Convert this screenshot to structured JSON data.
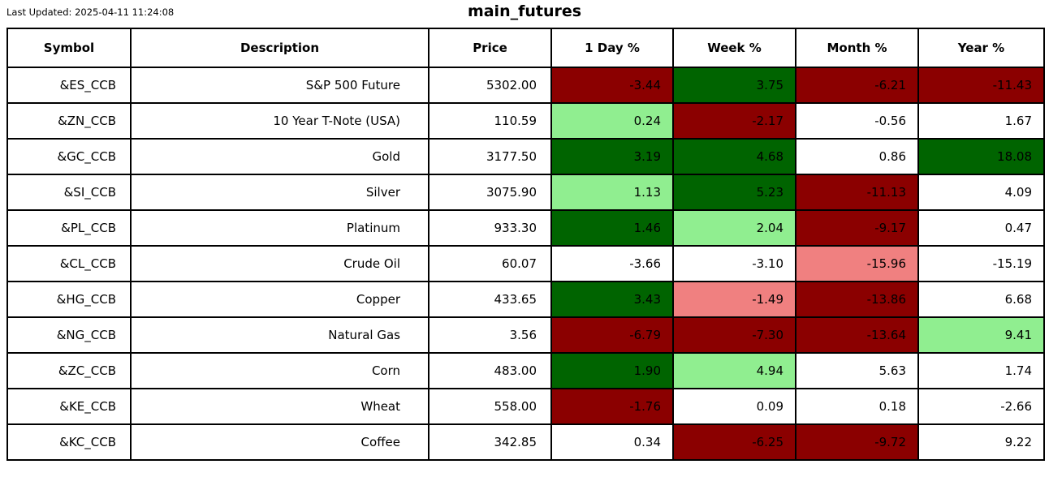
{
  "page": {
    "last_updated": "Last Updated: 2025-04-11 11:24:08",
    "title": "main_futures"
  },
  "colors": {
    "darkred": "#8b0000",
    "darkgreen": "#006400",
    "lightgreen": "#90ee90",
    "lightcoral": "#f08080",
    "white": "#ffffff",
    "border": "#000000",
    "text": "#000000"
  },
  "chart_data": {
    "type": "table",
    "title": "main_futures",
    "last_updated": "Last Updated: 2025-04-11 11:24:08",
    "columns": [
      "Symbol",
      "Description",
      "Price",
      "1 Day %",
      "Week %",
      "Month %",
      "Year %"
    ],
    "rows": [
      {
        "symbol": "&ES_CCB",
        "description": "S&P 500 Future",
        "price": "5302.00",
        "changes": [
          {
            "value": "-3.44",
            "bg": "darkred"
          },
          {
            "value": "3.75",
            "bg": "darkgreen"
          },
          {
            "value": "-6.21",
            "bg": "darkred"
          },
          {
            "value": "-11.43",
            "bg": "darkred"
          }
        ]
      },
      {
        "symbol": "&ZN_CCB",
        "description": "10 Year T-Note (USA)",
        "price": "110.59",
        "changes": [
          {
            "value": "0.24",
            "bg": "lightgreen"
          },
          {
            "value": "-2.17",
            "bg": "darkred"
          },
          {
            "value": "-0.56",
            "bg": "white"
          },
          {
            "value": "1.67",
            "bg": "white"
          }
        ]
      },
      {
        "symbol": "&GC_CCB",
        "description": "Gold",
        "price": "3177.50",
        "changes": [
          {
            "value": "3.19",
            "bg": "darkgreen"
          },
          {
            "value": "4.68",
            "bg": "darkgreen"
          },
          {
            "value": "0.86",
            "bg": "white"
          },
          {
            "value": "18.08",
            "bg": "darkgreen"
          }
        ]
      },
      {
        "symbol": "&SI_CCB",
        "description": "Silver",
        "price": "3075.90",
        "changes": [
          {
            "value": "1.13",
            "bg": "lightgreen"
          },
          {
            "value": "5.23",
            "bg": "darkgreen"
          },
          {
            "value": "-11.13",
            "bg": "darkred"
          },
          {
            "value": "4.09",
            "bg": "white"
          }
        ]
      },
      {
        "symbol": "&PL_CCB",
        "description": "Platinum",
        "price": "933.30",
        "changes": [
          {
            "value": "1.46",
            "bg": "darkgreen"
          },
          {
            "value": "2.04",
            "bg": "lightgreen"
          },
          {
            "value": "-9.17",
            "bg": "darkred"
          },
          {
            "value": "0.47",
            "bg": "white"
          }
        ]
      },
      {
        "symbol": "&CL_CCB",
        "description": "Crude Oil",
        "price": "60.07",
        "changes": [
          {
            "value": "-3.66",
            "bg": "white"
          },
          {
            "value": "-3.10",
            "bg": "white"
          },
          {
            "value": "-15.96",
            "bg": "lightcoral"
          },
          {
            "value": "-15.19",
            "bg": "white"
          }
        ]
      },
      {
        "symbol": "&HG_CCB",
        "description": "Copper",
        "price": "433.65",
        "changes": [
          {
            "value": "3.43",
            "bg": "darkgreen"
          },
          {
            "value": "-1.49",
            "bg": "lightcoral"
          },
          {
            "value": "-13.86",
            "bg": "darkred"
          },
          {
            "value": "6.68",
            "bg": "white"
          }
        ]
      },
      {
        "symbol": "&NG_CCB",
        "description": "Natural Gas",
        "price": "3.56",
        "changes": [
          {
            "value": "-6.79",
            "bg": "darkred"
          },
          {
            "value": "-7.30",
            "bg": "darkred"
          },
          {
            "value": "-13.64",
            "bg": "darkred"
          },
          {
            "value": "9.41",
            "bg": "lightgreen"
          }
        ]
      },
      {
        "symbol": "&ZC_CCB",
        "description": "Corn",
        "price": "483.00",
        "changes": [
          {
            "value": "1.90",
            "bg": "darkgreen"
          },
          {
            "value": "4.94",
            "bg": "lightgreen"
          },
          {
            "value": "5.63",
            "bg": "white"
          },
          {
            "value": "1.74",
            "bg": "white"
          }
        ]
      },
      {
        "symbol": "&KE_CCB",
        "description": "Wheat",
        "price": "558.00",
        "changes": [
          {
            "value": "-1.76",
            "bg": "darkred"
          },
          {
            "value": "0.09",
            "bg": "white"
          },
          {
            "value": "0.18",
            "bg": "white"
          },
          {
            "value": "-2.66",
            "bg": "white"
          }
        ]
      },
      {
        "symbol": "&KC_CCB",
        "description": "Coffee",
        "price": "342.85",
        "changes": [
          {
            "value": "0.34",
            "bg": "white"
          },
          {
            "value": "-6.25",
            "bg": "darkred"
          },
          {
            "value": "-9.72",
            "bg": "darkred"
          },
          {
            "value": "9.22",
            "bg": "white"
          }
        ]
      }
    ]
  }
}
